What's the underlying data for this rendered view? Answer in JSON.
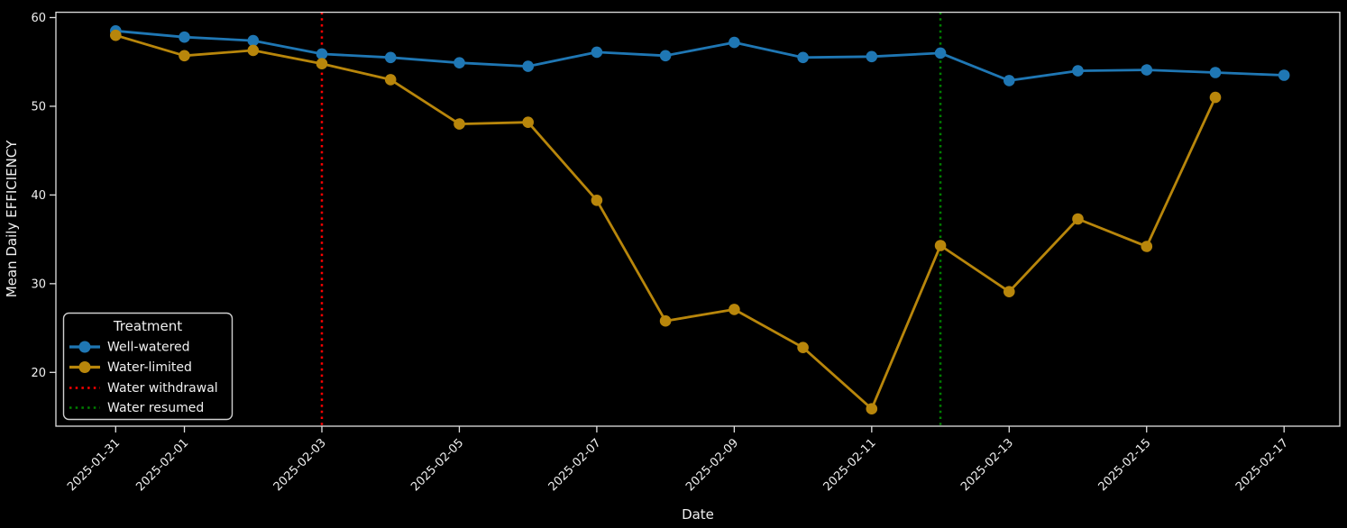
{
  "figure": {
    "background": "#000000",
    "text_color": "#f0f0f0",
    "spine_color": "#e0e0e0"
  },
  "chart_data": {
    "type": "line",
    "title": "",
    "xlabel": "Date",
    "ylabel": "Mean Daily EFFICIENCY",
    "x": [
      "2025-01-31",
      "2025-02-01",
      "2025-02-02",
      "2025-02-03",
      "2025-02-04",
      "2025-02-05",
      "2025-02-06",
      "2025-02-07",
      "2025-02-08",
      "2025-02-09",
      "2025-02-10",
      "2025-02-11",
      "2025-02-12",
      "2025-02-13",
      "2025-02-14",
      "2025-02-15",
      "2025-02-16",
      "2025-02-17"
    ],
    "series": [
      {
        "name": "Well-watered",
        "color": "#1f77b4",
        "marker": "circle",
        "values": [
          58.5,
          57.8,
          57.4,
          55.9,
          55.5,
          54.9,
          54.5,
          56.1,
          55.7,
          57.2,
          55.5,
          55.6,
          56.0,
          52.9,
          54.0,
          54.1,
          53.8,
          53.5
        ]
      },
      {
        "name": "Water-limited",
        "color": "#b8860b",
        "marker": "circle",
        "values": [
          58.0,
          55.7,
          56.3,
          54.8,
          53.0,
          48.0,
          48.2,
          39.4,
          25.8,
          27.1,
          22.8,
          15.9,
          34.3,
          29.1,
          37.3,
          34.2,
          51.0,
          null
        ]
      }
    ],
    "vlines": [
      {
        "date": "2025-02-03",
        "label": "Water withdrawal",
        "color": "#ff0000",
        "style": "dotted"
      },
      {
        "date": "2025-02-12",
        "label": "Water resumed",
        "color": "#008000",
        "style": "dotted"
      }
    ],
    "yticks": [
      20,
      30,
      40,
      50,
      60
    ],
    "xticks": [
      "2025-01-31",
      "2025-02-01",
      "2025-02-03",
      "2025-02-05",
      "2025-02-07",
      "2025-02-09",
      "2025-02-11",
      "2025-02-13",
      "2025-02-15",
      "2025-02-17"
    ],
    "ylim": [
      13.9,
      60.6
    ],
    "grid": false,
    "legend": {
      "title": "Treatment",
      "position": "lower left",
      "items": [
        {
          "label": "Well-watered",
          "color": "#1f77b4",
          "handle": "line-marker"
        },
        {
          "label": "Water-limited",
          "color": "#b8860b",
          "handle": "line-marker"
        },
        {
          "label": "Water withdrawal",
          "color": "#ff0000",
          "handle": "dotted-line"
        },
        {
          "label": "Water resumed",
          "color": "#008000",
          "handle": "dotted-line"
        }
      ]
    }
  }
}
